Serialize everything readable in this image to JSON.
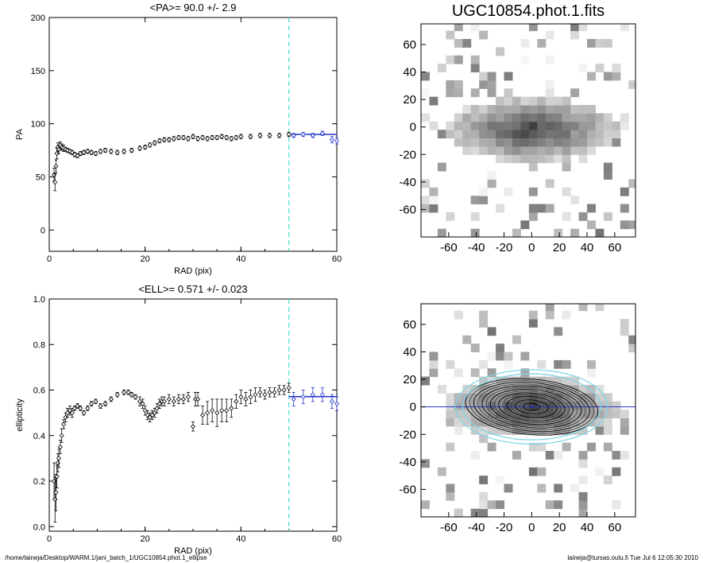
{
  "footer": {
    "left": "/home/laineja/Desktop/WARM.1/jani_batch_1/UGC10854.phot.1_ellipse",
    "right": "laineja@tursas.oulu.fi  Tue Jul  6 12:05:30 2010"
  },
  "colors": {
    "fit_line": "#2233cc",
    "cut_line": "#55e0d0",
    "points": "#000000",
    "outer_ellipse": "#7fd6e6"
  },
  "chart_data": [
    {
      "type": "scatter",
      "title": "<PA>=  90.0 +/-   2.9",
      "xlabel": "RAD (pix)",
      "ylabel": "PA",
      "xlim": [
        0,
        60
      ],
      "ylim": [
        -20,
        200
      ],
      "xticks": [
        0,
        20,
        40,
        60
      ],
      "yticks": [
        0,
        50,
        100,
        150,
        200
      ],
      "cut_radius": 50,
      "fit": {
        "value": 90.0,
        "x_start": 50,
        "x_end": 60
      },
      "series": [
        {
          "x": [
            1.0,
            1.2,
            1.4,
            1.6,
            1.8,
            2.0,
            2.3,
            2.6,
            3.0,
            3.4,
            3.8,
            4.3,
            4.8,
            5.3,
            5.9,
            6.5,
            7.2,
            8.0,
            8.8,
            9.7,
            10.7,
            11.7,
            12.9,
            14.2,
            15.6,
            17.2,
            18.9,
            20.0,
            21.0,
            22.0,
            23.0,
            24.0,
            25.0,
            26.0,
            27.0,
            28.0,
            29.0,
            30.0,
            31.0,
            32.0,
            33.0,
            34.0,
            35.0,
            36.0,
            37.0,
            38.0,
            39.0,
            40.0,
            42.0,
            44.0,
            46.0,
            48.0,
            50.0
          ],
          "y": [
            52,
            45,
            60,
            72,
            78,
            76,
            80,
            78,
            77,
            76,
            75,
            74,
            73,
            71,
            70,
            72,
            73,
            74,
            73,
            72,
            74,
            75,
            74,
            73,
            74,
            75,
            77,
            78,
            80,
            82,
            84,
            85,
            85,
            86,
            87,
            87,
            86,
            88,
            86,
            87,
            86,
            87,
            87,
            88,
            87,
            86,
            87,
            88,
            88,
            89,
            89,
            89,
            90
          ],
          "err": [
            6,
            8,
            6,
            5,
            4,
            4,
            3,
            3,
            3,
            2,
            2,
            2,
            2,
            2,
            2,
            2,
            2,
            2,
            2,
            2,
            2,
            2,
            2,
            2,
            2,
            2,
            2,
            2,
            2,
            2,
            2,
            2,
            2,
            2,
            2,
            2,
            2,
            2,
            2,
            2,
            2,
            2,
            2,
            2,
            2,
            2,
            2,
            2,
            2,
            2,
            2,
            2,
            2
          ]
        },
        {
          "x": [
            51.0,
            53.0,
            55.0,
            57.0,
            59.0,
            60.0
          ],
          "y": [
            89,
            90,
            89,
            91,
            85,
            84
          ],
          "err": [
            2,
            2,
            2,
            2,
            3,
            3
          ]
        }
      ]
    },
    {
      "type": "scatter",
      "title": "<ELL>= 0.571 +/-  0.023",
      "xlabel": "RAD (pix)",
      "ylabel": "ellipticity",
      "xlim": [
        0,
        60
      ],
      "ylim": [
        -0.02,
        1.0
      ],
      "xticks": [
        0,
        20,
        40,
        60
      ],
      "yticks": [
        0.0,
        0.2,
        0.4,
        0.6,
        0.8,
        1.0
      ],
      "cut_radius": 50,
      "fit": {
        "value": 0.571,
        "x_start": 50,
        "x_end": 60
      },
      "series": [
        {
          "x": [
            1.0,
            1.2,
            1.4,
            1.6,
            1.8,
            2.0,
            2.3,
            2.6,
            3.0,
            3.4,
            3.8,
            4.3,
            4.8,
            5.3,
            5.9,
            6.5,
            7.2,
            8.0,
            8.8,
            9.7,
            10.7,
            11.7,
            12.9,
            14.2,
            15.6,
            16.5,
            17.2,
            18.0,
            18.9,
            19.5,
            20.0,
            20.5,
            21.0,
            21.5,
            22.0,
            22.5,
            23.0,
            23.5,
            24.0,
            25.0,
            26.0,
            27.0,
            28.0,
            29.0,
            30.0,
            30.5,
            31.0,
            32.0,
            33.0,
            34.0,
            35.0,
            36.0,
            37.0,
            38.0,
            39.0,
            40.0,
            41.0,
            42.0,
            43.0,
            44.0,
            45.0,
            46.0,
            47.0,
            48.0,
            49.0,
            50.0
          ],
          "y": [
            0.2,
            0.12,
            0.15,
            0.22,
            0.28,
            0.3,
            0.35,
            0.4,
            0.45,
            0.48,
            0.5,
            0.51,
            0.5,
            0.52,
            0.53,
            0.52,
            0.5,
            0.52,
            0.54,
            0.55,
            0.53,
            0.54,
            0.56,
            0.58,
            0.59,
            0.59,
            0.58,
            0.57,
            0.55,
            0.54,
            0.51,
            0.49,
            0.48,
            0.49,
            0.5,
            0.52,
            0.54,
            0.55,
            0.55,
            0.56,
            0.55,
            0.56,
            0.56,
            0.57,
            0.44,
            0.56,
            0.56,
            0.49,
            0.5,
            0.51,
            0.5,
            0.51,
            0.51,
            0.52,
            0.55,
            0.57,
            0.56,
            0.57,
            0.58,
            0.59,
            0.58,
            0.59,
            0.59,
            0.6,
            0.6,
            0.61
          ],
          "err": [
            0.08,
            0.1,
            0.08,
            0.05,
            0.04,
            0.04,
            0.03,
            0.03,
            0.02,
            0.02,
            0.02,
            0.02,
            0.02,
            0.01,
            0.01,
            0.01,
            0.01,
            0.01,
            0.01,
            0.01,
            0.01,
            0.01,
            0.01,
            0.01,
            0.01,
            0.01,
            0.01,
            0.01,
            0.02,
            0.02,
            0.02,
            0.02,
            0.02,
            0.02,
            0.02,
            0.02,
            0.02,
            0.02,
            0.02,
            0.02,
            0.02,
            0.02,
            0.02,
            0.02,
            0.02,
            0.03,
            0.03,
            0.04,
            0.05,
            0.05,
            0.06,
            0.05,
            0.05,
            0.04,
            0.03,
            0.03,
            0.03,
            0.03,
            0.03,
            0.02,
            0.02,
            0.02,
            0.02,
            0.02,
            0.02,
            0.02
          ]
        },
        {
          "x": [
            51.0,
            53.0,
            55.0,
            57.0,
            59.0,
            60.0
          ],
          "y": [
            0.56,
            0.57,
            0.58,
            0.58,
            0.55,
            0.54
          ],
          "err": [
            0.03,
            0.03,
            0.03,
            0.03,
            0.03,
            0.03
          ]
        }
      ]
    },
    {
      "type": "heatmap",
      "title": "UGC10854.phot.1.fits",
      "xlim": [
        -80,
        75
      ],
      "ylim": [
        -80,
        75
      ],
      "xticks": [
        -60,
        -40,
        -20,
        0,
        20,
        40,
        60
      ],
      "yticks": [
        -60,
        -40,
        -20,
        0,
        20,
        40,
        60
      ],
      "galaxy": {
        "center": [
          0,
          -2
        ],
        "semi_major": 55,
        "semi_minor": 20
      }
    },
    {
      "type": "heatmap",
      "title": "",
      "xlim": [
        -80,
        75
      ],
      "ylim": [
        -80,
        75
      ],
      "xticks": [
        -60,
        -40,
        -20,
        0,
        20,
        40,
        60
      ],
      "yticks": [
        -60,
        -40,
        -20,
        0,
        20,
        40,
        60
      ],
      "major_axis_y": 0,
      "ellipses": {
        "outer_semi_major": 55,
        "outer_semi_minor": 27,
        "inner_semi_major": 50,
        "inner_semi_minor": 24,
        "contour_max": 48
      }
    }
  ]
}
